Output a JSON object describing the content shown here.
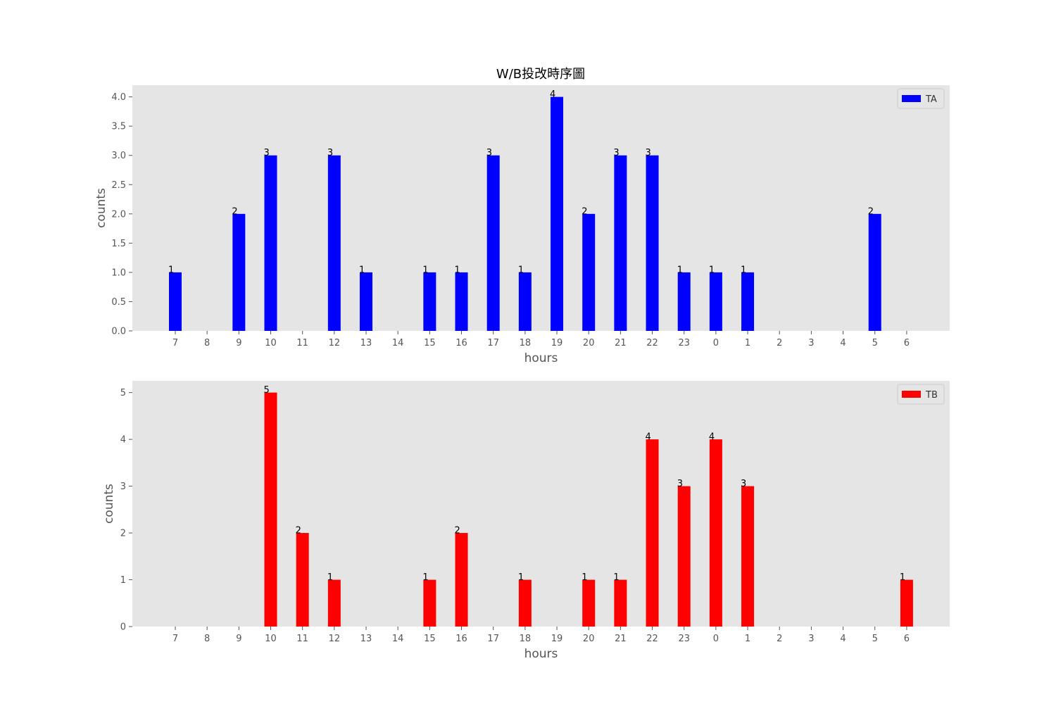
{
  "chart_data": [
    {
      "panel": "top",
      "type": "bar",
      "title": "W/B投改時序圖",
      "xlabel": "hours",
      "ylabel": "counts",
      "categories": [
        "7",
        "8",
        "9",
        "10",
        "11",
        "12",
        "13",
        "14",
        "15",
        "16",
        "17",
        "18",
        "19",
        "20",
        "21",
        "22",
        "23",
        "0",
        "1",
        "2",
        "3",
        "4",
        "5",
        "6"
      ],
      "series": [
        {
          "name": "TA",
          "color": "#0000ff",
          "values": [
            1,
            0,
            2,
            3,
            0,
            3,
            1,
            0,
            1,
            1,
            3,
            1,
            4,
            2,
            3,
            3,
            1,
            1,
            1,
            0,
            0,
            0,
            2,
            0
          ]
        }
      ],
      "ylim": [
        0,
        4.2
      ],
      "yticks": [
        0.0,
        0.5,
        1.0,
        1.5,
        2.0,
        2.5,
        3.0,
        3.5,
        4.0
      ],
      "ytick_labels": [
        "0.0",
        "0.5",
        "1.0",
        "1.5",
        "2.0",
        "2.5",
        "3.0",
        "3.5",
        "4.0"
      ],
      "grid": false,
      "legend": "top-right",
      "background": "#e5e5e5"
    },
    {
      "panel": "bottom",
      "type": "bar",
      "title": "",
      "xlabel": "hours",
      "ylabel": "counts",
      "categories": [
        "7",
        "8",
        "9",
        "10",
        "11",
        "12",
        "13",
        "14",
        "15",
        "16",
        "17",
        "18",
        "19",
        "20",
        "21",
        "22",
        "23",
        "0",
        "1",
        "2",
        "3",
        "4",
        "5",
        "6"
      ],
      "series": [
        {
          "name": "TB",
          "color": "#ff0000",
          "values": [
            0,
            0,
            0,
            5,
            2,
            1,
            0,
            0,
            1,
            2,
            0,
            1,
            0,
            1,
            1,
            4,
            3,
            4,
            3,
            0,
            0,
            0,
            0,
            1
          ]
        }
      ],
      "ylim": [
        0,
        5.25
      ],
      "yticks": [
        0,
        1,
        2,
        3,
        4,
        5
      ],
      "ytick_labels": [
        "0",
        "1",
        "2",
        "3",
        "4",
        "5"
      ],
      "grid": false,
      "legend": "top-right",
      "background": "#e5e5e5"
    }
  ]
}
